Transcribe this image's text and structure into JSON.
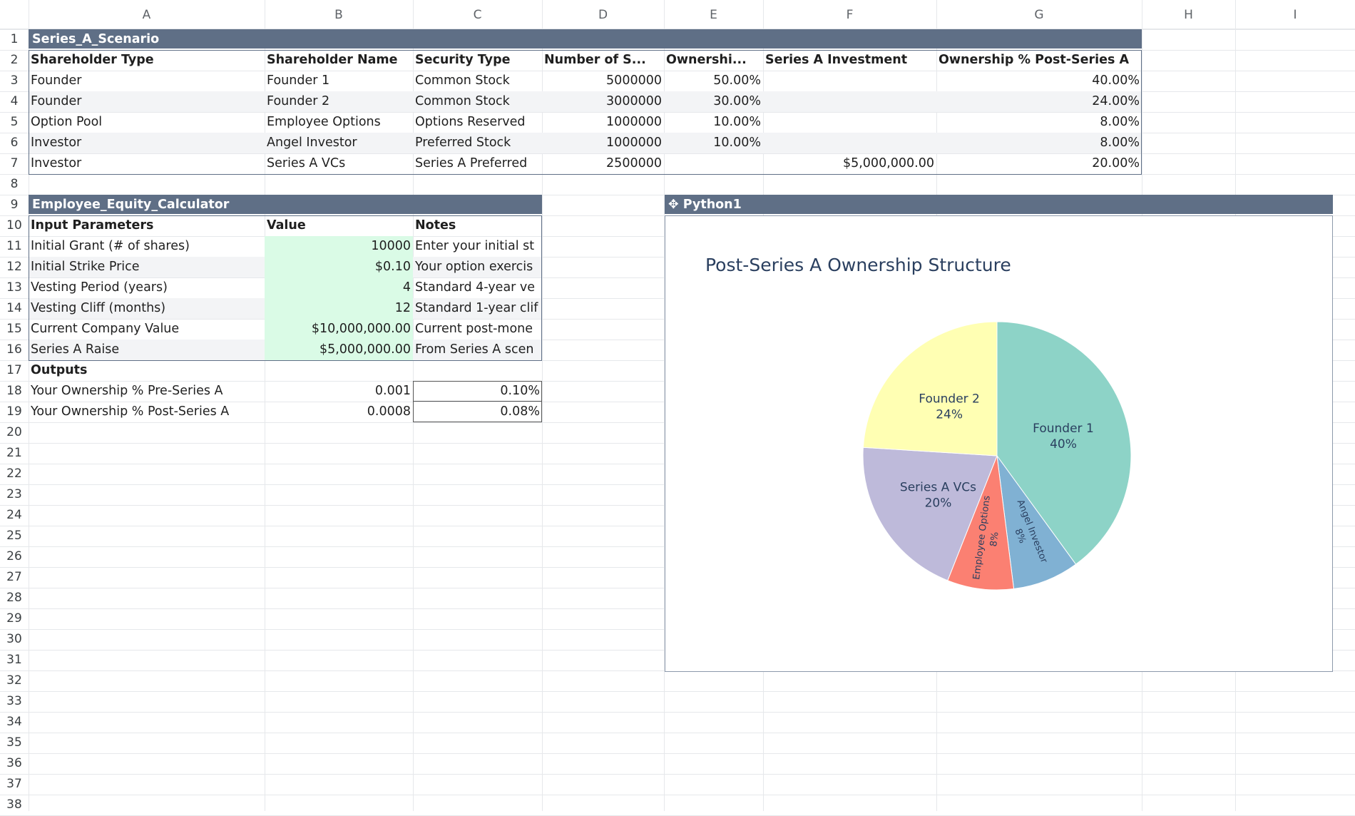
{
  "columns": [
    "A",
    "B",
    "C",
    "D",
    "E",
    "F",
    "G",
    "H",
    "I"
  ],
  "rows": [
    "1",
    "2",
    "3",
    "4",
    "5",
    "6",
    "7",
    "8",
    "9",
    "10",
    "11",
    "12",
    "13",
    "14",
    "15",
    "16",
    "17",
    "18",
    "19",
    "20",
    "21",
    "22",
    "23",
    "24",
    "25",
    "26",
    "27",
    "28",
    "29",
    "30",
    "31",
    "32",
    "33",
    "34",
    "35",
    "36",
    "37",
    "38"
  ],
  "scenario": {
    "title": "Series_A_Scenario",
    "headers": [
      "Shareholder Type",
      "Shareholder Name",
      "Security Type",
      "Number of S...",
      "Ownershi...",
      "Series A Investment",
      "Ownership % Post-Series A"
    ],
    "rows": [
      [
        "Founder",
        "Founder 1",
        "Common Stock",
        "5000000",
        "50.00%",
        "",
        "40.00%"
      ],
      [
        "Founder",
        "Founder 2",
        "Common Stock",
        "3000000",
        "30.00%",
        "",
        "24.00%"
      ],
      [
        "Option Pool",
        "Employee Options",
        "Options Reserved",
        "1000000",
        "10.00%",
        "",
        "8.00%"
      ],
      [
        "Investor",
        "Angel Investor",
        "Preferred Stock",
        "1000000",
        "10.00%",
        "",
        "8.00%"
      ],
      [
        "Investor",
        "Series A VCs",
        "Series A Preferred",
        "2500000",
        "",
        "$5,000,000.00",
        "20.00%"
      ]
    ]
  },
  "calculator": {
    "title": "Employee_Equity_Calculator",
    "headers": [
      "Input Parameters",
      "Value",
      "Notes"
    ],
    "inputs": [
      [
        "Initial Grant (# of shares)",
        "10000",
        "Enter your initial st"
      ],
      [
        "Initial Strike Price",
        "$0.10",
        "Your option exercis"
      ],
      [
        "Vesting Period (years)",
        "4",
        "Standard 4-year ve"
      ],
      [
        "Vesting Cliff (months)",
        "12",
        "Standard 1-year clif"
      ],
      [
        "Current Company Value",
        "$10,000,000.00",
        "Current post-mone"
      ],
      [
        "Series A Raise",
        "$5,000,000.00",
        "From Series A scen"
      ]
    ],
    "outputs_label": "Outputs",
    "outputs": [
      [
        "Your Ownership % Pre-Series A",
        "0.001",
        "0.10%"
      ],
      [
        "Your Ownership % Post-Series A",
        "0.0008",
        "0.08%"
      ]
    ]
  },
  "python_panel": {
    "title": "Python1",
    "icon": "python-icon"
  },
  "chart_data": {
    "type": "pie",
    "title": "Post-Series A Ownership Structure",
    "labels": [
      "Founder 1",
      "Angel Investor",
      "Employee Options",
      "Series A VCs",
      "Founder 2"
    ],
    "values": [
      40,
      8,
      8,
      20,
      24
    ],
    "percent_labels": [
      "40%",
      "8%",
      "8%",
      "20%",
      "24%"
    ],
    "colors": [
      "#8dd3c7",
      "#80b1d3",
      "#fb8072",
      "#bebada",
      "#ffffb3"
    ],
    "start": "12 o'clock",
    "direction": "clockwise"
  }
}
